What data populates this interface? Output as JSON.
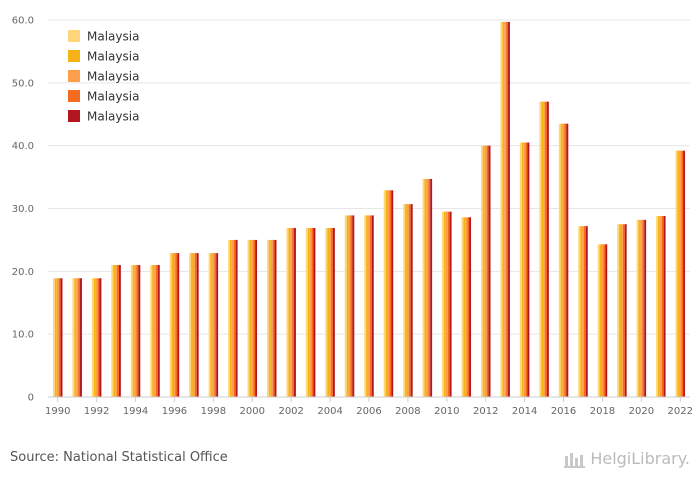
{
  "chart_data": {
    "type": "bar",
    "categories": [
      "1990",
      "1991",
      "1992",
      "1993",
      "1994",
      "1995",
      "1996",
      "1997",
      "1998",
      "1999",
      "2000",
      "2001",
      "2002",
      "2003",
      "2004",
      "2005",
      "2006",
      "2007",
      "2008",
      "2009",
      "2010",
      "2011",
      "2012",
      "2013",
      "2014",
      "2015",
      "2016",
      "2017",
      "2018",
      "2019",
      "2020",
      "2021",
      "2022"
    ],
    "x_tick_labels": [
      "1990",
      "1992",
      "1994",
      "1996",
      "1998",
      "2000",
      "2002",
      "2004",
      "2006",
      "2008",
      "2010",
      "2012",
      "2014",
      "2016",
      "2018",
      "2020",
      "2022"
    ],
    "y_tick_labels": [
      "0",
      "10.0",
      "20.0",
      "30.0",
      "40.0",
      "50.0",
      "60.0"
    ],
    "ylim": [
      0,
      60
    ],
    "series": [
      {
        "name": "Malaysia",
        "color": "#ffd77a",
        "values": [
          18.9,
          18.9,
          18.9,
          21.0,
          21.0,
          21.0,
          22.9,
          22.9,
          22.9,
          25.0,
          25.0,
          25.0,
          26.9,
          26.9,
          26.9,
          28.9,
          28.9,
          32.9,
          30.7,
          34.7,
          29.5,
          28.6,
          40.0,
          59.7,
          40.5,
          47.0,
          43.5,
          27.2,
          24.3,
          27.5,
          28.2,
          28.8,
          39.2
        ]
      },
      {
        "name": "Malaysia",
        "color": "#f5b316",
        "values": [
          18.9,
          18.9,
          18.9,
          21.0,
          21.0,
          21.0,
          22.9,
          22.9,
          22.9,
          25.0,
          25.0,
          25.0,
          26.9,
          26.9,
          26.9,
          28.9,
          28.9,
          32.9,
          30.7,
          34.7,
          29.5,
          28.6,
          40.0,
          59.7,
          40.5,
          47.0,
          43.5,
          27.2,
          24.3,
          27.5,
          28.2,
          28.8,
          39.2
        ]
      },
      {
        "name": "Malaysia",
        "color": "#ff9e4a",
        "values": [
          18.9,
          18.9,
          18.9,
          21.0,
          21.0,
          21.0,
          22.9,
          22.9,
          22.9,
          25.0,
          25.0,
          25.0,
          26.9,
          26.9,
          26.9,
          28.9,
          28.9,
          32.9,
          30.7,
          34.7,
          29.5,
          28.6,
          40.0,
          59.7,
          40.5,
          47.0,
          43.5,
          27.2,
          24.3,
          27.5,
          28.2,
          28.8,
          39.2
        ]
      },
      {
        "name": "Malaysia",
        "color": "#f56a1d",
        "values": [
          18.9,
          18.9,
          18.9,
          21.0,
          21.0,
          21.0,
          22.9,
          22.9,
          22.9,
          25.0,
          25.0,
          25.0,
          26.9,
          26.9,
          26.9,
          28.9,
          28.9,
          32.9,
          30.7,
          34.7,
          29.5,
          28.6,
          40.0,
          59.7,
          40.5,
          47.0,
          43.5,
          27.2,
          24.3,
          27.5,
          28.2,
          28.8,
          39.2
        ]
      },
      {
        "name": "Malaysia",
        "color": "#b3161f",
        "values": [
          18.9,
          18.9,
          18.9,
          21.0,
          21.0,
          21.0,
          22.9,
          22.9,
          22.9,
          25.0,
          25.0,
          25.0,
          26.9,
          26.9,
          26.9,
          28.9,
          28.9,
          32.9,
          30.7,
          34.7,
          29.5,
          28.6,
          40.0,
          59.7,
          40.5,
          47.0,
          43.5,
          27.2,
          24.3,
          27.5,
          28.2,
          28.8,
          39.2
        ]
      }
    ],
    "grid": true,
    "legend_position": "top-left"
  },
  "footer": {
    "source": "Source: National Statistical Office",
    "brand": "HelgiLibrary."
  }
}
